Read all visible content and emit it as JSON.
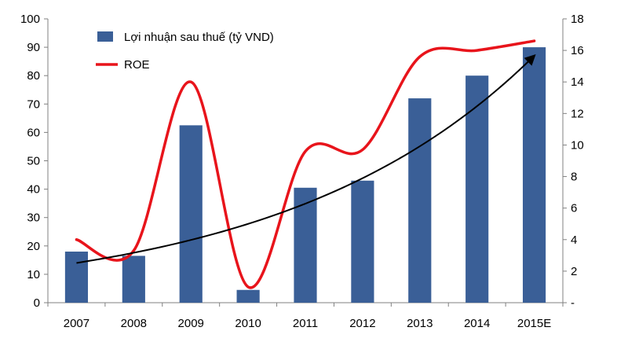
{
  "chart_data": {
    "type": "bar",
    "title": "",
    "categories": [
      "2007",
      "2008",
      "2009",
      "2010",
      "2011",
      "2012",
      "2013",
      "2014",
      "2015E"
    ],
    "series": [
      {
        "name": "Lợi nhuận sau thuế (tỷ VND)",
        "type": "bar",
        "axis": "left",
        "color": "#3A5F97",
        "values": [
          18,
          16.5,
          62.5,
          4.5,
          40.5,
          43,
          72,
          80,
          90
        ]
      },
      {
        "name": "ROE",
        "type": "line",
        "smooth": true,
        "axis": "right",
        "color": "#E8141B",
        "values": [
          4,
          3.3,
          14,
          1,
          9.6,
          9.7,
          15.6,
          16,
          16.6
        ]
      }
    ],
    "trend_arrow": {
      "type": "exponential",
      "axis": "left",
      "color": "#000000",
      "from_category": "2007",
      "to_category": "2015E",
      "start_value": 14,
      "end_value": 87
    },
    "y_left": {
      "lim": [
        0,
        100
      ],
      "ticks": [
        "0",
        "10",
        "20",
        "30",
        "40",
        "50",
        "60",
        "70",
        "80",
        "90",
        "100"
      ]
    },
    "y_right": {
      "lim": [
        0,
        18
      ],
      "ticks": [
        "-",
        "2",
        "4",
        "6",
        "8",
        "10",
        "12",
        "14",
        "16",
        "18"
      ]
    },
    "grid": false,
    "legend": {
      "position": "top-left"
    }
  }
}
